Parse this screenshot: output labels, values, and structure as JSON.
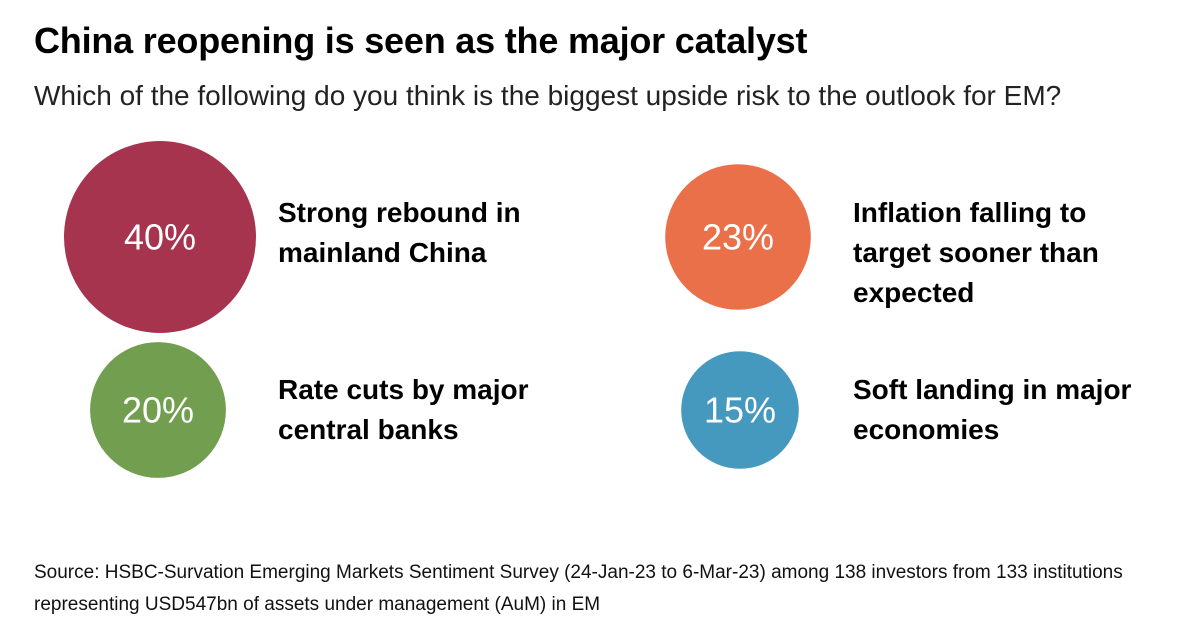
{
  "header": {
    "title": "China reopening is seen as the major catalyst",
    "subtitle": "Which of the following do you think is the biggest upside risk to the outlook for EM?"
  },
  "chart_data": {
    "type": "bubble",
    "title": "China reopening is seen as the major catalyst",
    "subtitle": "Which of the following do you think is the biggest upside risk to the outlook for EM?",
    "unit": "%",
    "series": [
      {
        "value": 40,
        "value_label": "40%",
        "label_lines": [
          "Strong rebound in",
          "mainland China"
        ],
        "color": "#A6344F"
      },
      {
        "value": 23,
        "value_label": "23%",
        "label_lines": [
          "Inflation falling to",
          "target sooner than",
          "expected"
        ],
        "color": "#EA7049"
      },
      {
        "value": 20,
        "value_label": "20%",
        "label_lines": [
          "Rate cuts by major",
          "central banks"
        ],
        "color": "#729E50"
      },
      {
        "value": 15,
        "value_label": "15%",
        "label_lines": [
          "Soft landing in major",
          "economies"
        ],
        "color": "#4599BE"
      }
    ]
  },
  "footer": {
    "source": "Source: HSBC-Survation Emerging Markets Sentiment Survey (24-Jan-23 to 6-Mar-23) among 138 investors from 133 institutions representing USD547bn of assets under management (AuM) in EM"
  }
}
